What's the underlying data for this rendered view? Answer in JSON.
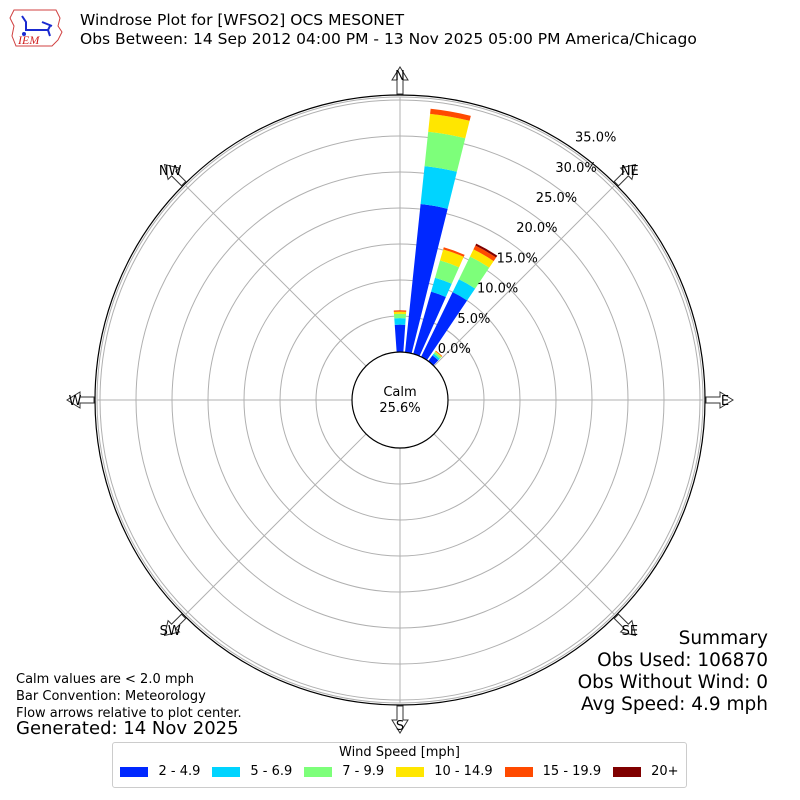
{
  "header": {
    "logo_text": "IEM",
    "title_line1": "Windrose Plot for [WFSO2] OCS MESONET",
    "title_line2": "Obs Between: 14 Sep 2012 04:00 PM - 13 Nov 2025 05:00 PM America/Chicago"
  },
  "compass": {
    "N": "N",
    "NE": "NE",
    "E": "E",
    "SE": "SE",
    "S": "S",
    "SW": "SW",
    "W": "W",
    "NW": "NW"
  },
  "calm": {
    "label": "Calm",
    "value": "25.6%"
  },
  "notes": {
    "line1": "Calm values are < 2.0 mph",
    "line2": "Bar Convention: Meteorology",
    "line3": "Flow arrows relative to plot center.",
    "generated": "Generated: 14 Nov 2025"
  },
  "summary": {
    "title": "Summary",
    "obs_used": "Obs Used: 106870",
    "obs_without_wind": "Obs Without Wind: 0",
    "avg_speed": "Avg Speed: 4.9 mph"
  },
  "legend": {
    "title": "Wind Speed [mph]",
    "items": [
      {
        "label": "2 - 4.9",
        "color": "#0028ff"
      },
      {
        "label": "5 - 6.9",
        "color": "#00d4ff"
      },
      {
        "label": "7 - 9.9",
        "color": "#7dff7a"
      },
      {
        "label": "10 - 14.9",
        "color": "#ffe600"
      },
      {
        "label": "15 - 19.9",
        "color": "#ff4a00"
      },
      {
        "label": "20+",
        "color": "#800000"
      }
    ]
  },
  "chart_data": {
    "type": "windrose",
    "title": "Windrose Plot for [WFSO2] OCS MESONET",
    "subtitle": "Obs Between: 14 Sep 2012 04:00 PM - 13 Nov 2025 05:00 PM America/Chicago",
    "radial_ticks": [
      "0.0%",
      "5.0%",
      "10.0%",
      "15.0%",
      "20.0%",
      "25.0%",
      "30.0%",
      "35.0%"
    ],
    "rlim": [
      0,
      35
    ],
    "calm_percent": 25.6,
    "bins": [
      "2 - 4.9",
      "5 - 6.9",
      "7 - 9.9",
      "10 - 14.9",
      "15 - 19.9",
      "20+"
    ],
    "directions_deg": [
      0,
      10,
      20,
      30,
      40
    ],
    "series_cumulative_percent": [
      {
        "direction": 0,
        "values": [
          3.8,
          4.7,
          5.3,
          5.6,
          5.8,
          5.8
        ]
      },
      {
        "direction": 10,
        "values": [
          20.7,
          26.0,
          30.8,
          33.3,
          34.0,
          34.0
        ]
      },
      {
        "direction": 20,
        "values": [
          9.0,
          11.0,
          13.5,
          15.1,
          15.4,
          15.4
        ]
      },
      {
        "direction": 30,
        "values": [
          10.0,
          12.0,
          15.5,
          16.6,
          17.2,
          17.5
        ]
      },
      {
        "direction": 40,
        "values": [
          1.0,
          1.3,
          1.6,
          1.7,
          1.8,
          1.8
        ]
      }
    ],
    "legend_position": "bottom",
    "grid": true
  }
}
